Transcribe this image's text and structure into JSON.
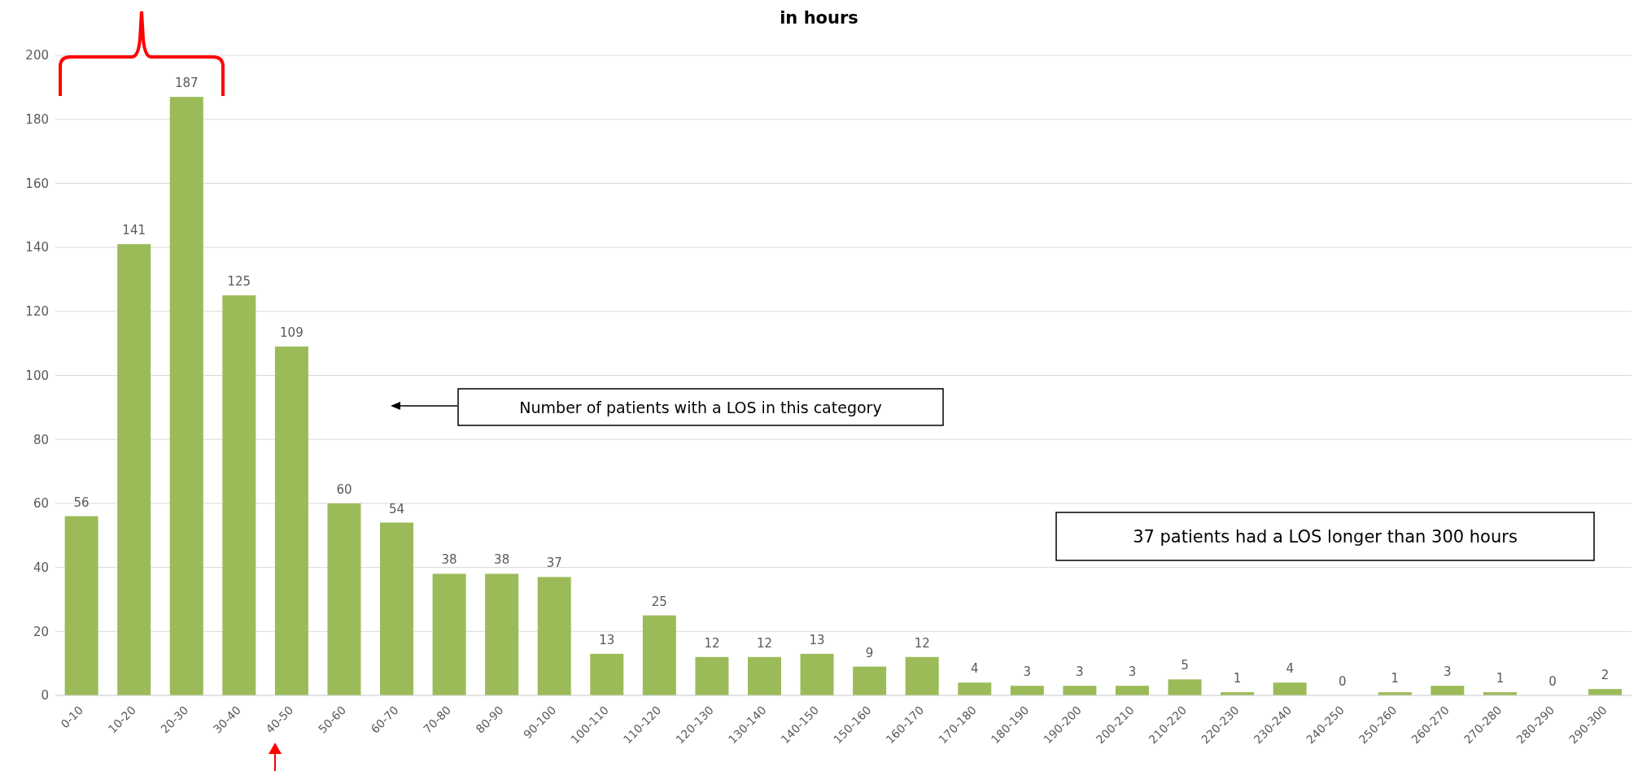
{
  "chart_data": {
    "type": "bar",
    "title": "in hours",
    "categories": [
      "0-10",
      "10-20",
      "20-30",
      "30-40",
      "40-50",
      "50-60",
      "60-70",
      "70-80",
      "80-90",
      "90-100",
      "100-110",
      "110-120",
      "120-130",
      "130-140",
      "140-150",
      "150-160",
      "160-170",
      "170-180",
      "180-190",
      "190-200",
      "200-210",
      "210-220",
      "220-230",
      "230-240",
      "240-250",
      "250-260",
      "260-270",
      "270-280",
      "280-290",
      "290-300"
    ],
    "values": [
      56,
      141,
      187,
      125,
      109,
      60,
      54,
      38,
      38,
      37,
      13,
      25,
      12,
      12,
      13,
      9,
      12,
      4,
      3,
      3,
      3,
      5,
      1,
      4,
      0,
      1,
      3,
      1,
      0,
      2
    ],
    "color": "#9bbb59",
    "ylim": [
      0,
      200
    ],
    "yticks": [
      0,
      20,
      40,
      60,
      80,
      100,
      120,
      140,
      160,
      180,
      200
    ],
    "grid": "y",
    "data_labels": true,
    "annotations": [
      "Number of patients with a LOS in this category",
      "37 patients had a LOS longer than 300 hours"
    ]
  }
}
